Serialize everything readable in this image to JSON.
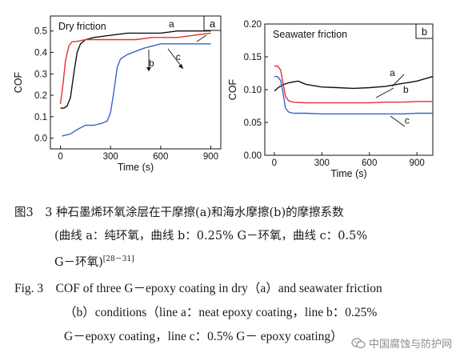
{
  "chart_data": [
    {
      "type": "line",
      "panel_letter": "a",
      "title": "Dry friction",
      "xlabel": "Time (s)",
      "ylabel": "COF",
      "xlim": [
        -60,
        960
      ],
      "ylim": [
        -0.05,
        0.57
      ],
      "xticks": [
        0,
        300,
        600,
        900
      ],
      "yticks": [
        0.0,
        0.1,
        0.2,
        0.3,
        0.4,
        0.5
      ],
      "ytick_labels": [
        "0.0",
        "0.1",
        "0.2",
        "0.3",
        "0.4",
        "0.5"
      ],
      "series": [
        {
          "name": "a",
          "color": "#111111",
          "x": [
            0,
            20,
            40,
            60,
            80,
            100,
            120,
            150,
            200,
            300,
            400,
            500,
            600,
            700,
            800,
            900
          ],
          "y": [
            0.14,
            0.14,
            0.15,
            0.19,
            0.3,
            0.4,
            0.44,
            0.46,
            0.47,
            0.48,
            0.49,
            0.49,
            0.49,
            0.5,
            0.5,
            0.5
          ]
        },
        {
          "name": "b",
          "color": "#e53030",
          "x": [
            0,
            15,
            30,
            50,
            70,
            90,
            150,
            250,
            350,
            450,
            550,
            600,
            700,
            800,
            900
          ],
          "y": [
            0.16,
            0.25,
            0.36,
            0.43,
            0.45,
            0.45,
            0.46,
            0.46,
            0.46,
            0.46,
            0.47,
            0.47,
            0.47,
            0.48,
            0.49
          ]
        },
        {
          "name": "c",
          "color": "#3a63c8",
          "x": [
            10,
            60,
            100,
            150,
            200,
            250,
            280,
            300,
            320,
            340,
            360,
            400,
            500,
            600,
            700,
            800,
            900
          ],
          "y": [
            0.01,
            0.02,
            0.04,
            0.06,
            0.06,
            0.07,
            0.08,
            0.12,
            0.22,
            0.33,
            0.37,
            0.39,
            0.42,
            0.44,
            0.44,
            0.44,
            0.44
          ]
        }
      ],
      "annotations": [
        {
          "text": "a",
          "x": 665,
          "y": 0.518
        },
        {
          "text": "b",
          "x": 545,
          "y": 0.335
        },
        {
          "text": "c",
          "x": 705,
          "y": 0.365
        }
      ]
    },
    {
      "type": "line",
      "panel_letter": "b",
      "title": "Seawater friction",
      "xlabel": "Time (s)",
      "ylabel": "COF",
      "xlim": [
        -60,
        1000
      ],
      "ylim": [
        0.0,
        0.2
      ],
      "xticks": [
        0,
        300,
        600,
        900
      ],
      "yticks": [
        0.0,
        0.05,
        0.1,
        0.15,
        0.2
      ],
      "ytick_labels": [
        "0.00",
        "0.05",
        "0.10",
        "0.15",
        "0.20"
      ],
      "series": [
        {
          "name": "a",
          "color": "#111111",
          "x": [
            0,
            10,
            30,
            60,
            100,
            150,
            200,
            300,
            400,
            500,
            600,
            700,
            800,
            900,
            1000
          ],
          "y": [
            0.098,
            0.1,
            0.104,
            0.108,
            0.111,
            0.113,
            0.108,
            0.104,
            0.103,
            0.102,
            0.103,
            0.105,
            0.109,
            0.113,
            0.12
          ]
        },
        {
          "name": "b",
          "color": "#e53030",
          "x": [
            0,
            20,
            40,
            55,
            70,
            90,
            120,
            200,
            300,
            400,
            500,
            600,
            700,
            800,
            900,
            1000
          ],
          "y": [
            0.136,
            0.136,
            0.13,
            0.11,
            0.09,
            0.083,
            0.081,
            0.08,
            0.08,
            0.08,
            0.08,
            0.08,
            0.081,
            0.081,
            0.082,
            0.082
          ]
        },
        {
          "name": "c",
          "color": "#3a63c8",
          "x": [
            0,
            20,
            40,
            55,
            70,
            90,
            120,
            200,
            300,
            400,
            500,
            600,
            700,
            800,
            900,
            1000
          ],
          "y": [
            0.12,
            0.12,
            0.114,
            0.095,
            0.072,
            0.066,
            0.064,
            0.064,
            0.063,
            0.063,
            0.063,
            0.063,
            0.063,
            0.063,
            0.064,
            0.064
          ]
        }
      ],
      "annotations": [
        {
          "text": "a",
          "x": 745,
          "y": 0.121
        },
        {
          "text": "b",
          "x": 830,
          "y": 0.095
        },
        {
          "text": "c",
          "x": 838,
          "y": 0.048
        }
      ]
    }
  ],
  "caption": {
    "zh_lines": [
      "图3　3 种石墨烯环氧涂层在干摩擦(a)和海水摩擦(b)的摩擦系数",
      "(曲线 a：纯环氧，曲线 b：0.25% G－环氧，曲线 c：0.5%",
      "G－环氧)"
    ],
    "zh_ref": "[28－31]",
    "en_lines": [
      "Fig. 3　COF of three G－epoxy coating in dry（a）and seawater friction",
      "（b）conditions（line a：neat epoxy coating，line b：0.25%",
      "G－epoxy coating，line c：0.5% G－ epoxy coating）"
    ]
  },
  "watermark": "中国腐蚀与防护网"
}
